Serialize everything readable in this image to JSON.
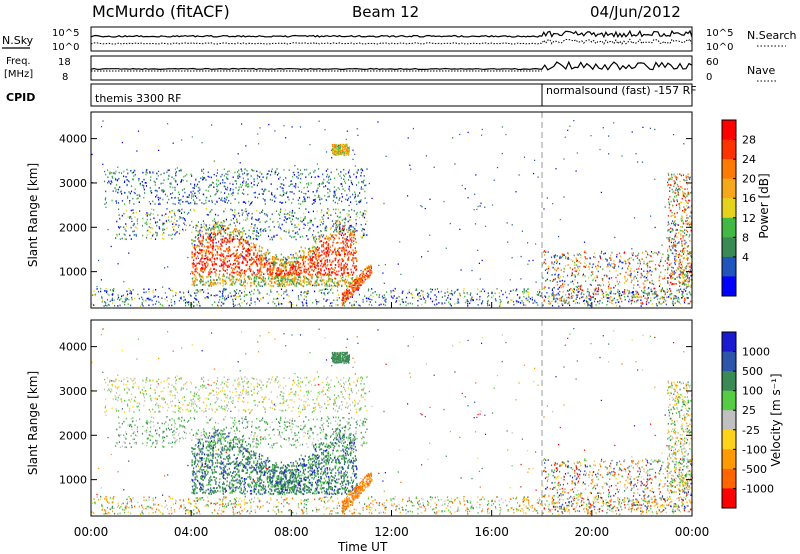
{
  "header": {
    "title_left": "McMurdo (fitACF)",
    "title_center": "Beam 12",
    "title_right": "04/Jun/2012"
  },
  "strip_panels": {
    "nsky": {
      "label": "N.Sky",
      "tick_top": "10^5",
      "tick_bottom": "10^0",
      "right_label": "N.Search",
      "right_tick_top": "10^5",
      "right_tick_bottom": "10^0"
    },
    "freq": {
      "label_line1": "Freq.",
      "label_line2": "[MHz]",
      "tick_top": "18",
      "tick_bottom": "8",
      "right_label": "Nave",
      "right_tick_top": "60",
      "right_tick_bottom": "0"
    },
    "cpid": {
      "label": "CPID",
      "segments": [
        {
          "text": "themis 3300 RF",
          "start_hour": 0
        },
        {
          "text": "normalsound (fast) -157 RF",
          "start_hour": 18
        }
      ]
    }
  },
  "colors": {
    "power_scale": [
      "#0000ff",
      "#2255bb",
      "#3a8a55",
      "#44b844",
      "#e4d21c",
      "#f5a81c",
      "#ff7a00",
      "#ff3300",
      "#ff0000"
    ],
    "velocity_scale": [
      "#1a1ad0",
      "#2d55aa",
      "#3a8a55",
      "#55cc44",
      "#c0c0c0",
      "#ffd21c",
      "#ff9a00",
      "#ff6600",
      "#ff0000"
    ],
    "axis": "#000000"
  },
  "chart_data": [
    {
      "type": "heatmap",
      "name": "power-panel",
      "xlabel": "",
      "ylabel": "Slant Range [km]",
      "x_range_hours": [
        0,
        24
      ],
      "y_range_km": [
        180,
        4600
      ],
      "y_ticks": [
        1000,
        2000,
        3000,
        4000
      ],
      "y_tick_labels": [
        "1000",
        "2000",
        "3000",
        "4000"
      ],
      "colorbar": {
        "label": "Power [dB]",
        "ticks": [
          "4",
          "8",
          "12",
          "16",
          "20",
          "24",
          "28"
        ],
        "tick_values": [
          4,
          8,
          12,
          16,
          20,
          24,
          28
        ],
        "range": [
          0,
          30
        ]
      }
    },
    {
      "type": "heatmap",
      "name": "velocity-panel",
      "xlabel": "Time UT",
      "ylabel": "Slant Range [km]",
      "x_range_hours": [
        0,
        24
      ],
      "x_ticks_hours": [
        0,
        4,
        8,
        12,
        16,
        20,
        24
      ],
      "x_tick_labels": [
        "00:00",
        "04:00",
        "08:00",
        "12:00",
        "16:00",
        "20:00",
        "00:00"
      ],
      "y_range_km": [
        180,
        4600
      ],
      "y_ticks": [
        1000,
        2000,
        3000,
        4000
      ],
      "y_tick_labels": [
        "1000",
        "2000",
        "3000",
        "4000"
      ],
      "colorbar": {
        "label": "Velocity [m s⁻¹]",
        "ticks": [
          "1000",
          "500",
          "100",
          "25",
          "-25",
          "-100",
          "-500",
          "-1000"
        ]
      }
    }
  ]
}
